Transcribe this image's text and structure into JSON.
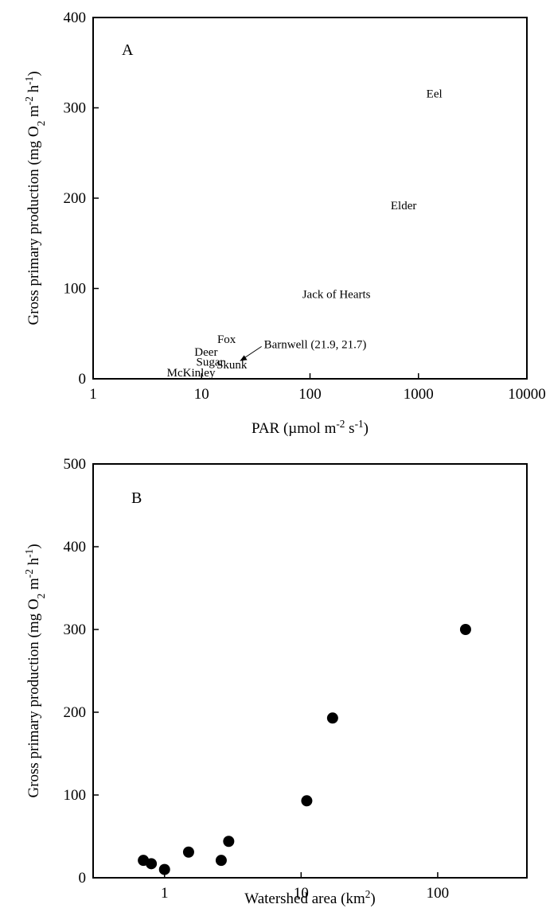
{
  "chart_data": [
    {
      "type": "scatter",
      "panel_label": "A",
      "xlabel": "PAR (µmol m⁻² s⁻¹)",
      "ylabel": "Gross primary production (mg O₂ m⁻² h⁻¹)",
      "x_scale": "log",
      "xlim": [
        1,
        10000
      ],
      "ylim": [
        0,
        400
      ],
      "x_ticks": [
        "1",
        "10",
        "100",
        "1000",
        "10000"
      ],
      "y_ticks": [
        "0",
        "100",
        "200",
        "300",
        "400"
      ],
      "grid": false,
      "marker": "text-label",
      "points": [
        {
          "label": "Eel",
          "x": 1400,
          "y": 316
        },
        {
          "label": "Elder",
          "x": 730,
          "y": 192
        },
        {
          "label": "Jack of Hearts",
          "x": 175,
          "y": 94
        },
        {
          "label": "Fox",
          "x": 17,
          "y": 44
        },
        {
          "label": "Deer",
          "x": 11,
          "y": 30
        },
        {
          "label": "Sugar",
          "x": 12,
          "y": 19
        },
        {
          "label": "Skunk",
          "x": 19,
          "y": 16
        },
        {
          "label": "McKinley",
          "x": 8,
          "y": 7
        },
        {
          "label": "Barnwell (21.9, 21.7)",
          "x": 21.9,
          "y": 21.7
        }
      ]
    },
    {
      "type": "scatter",
      "panel_label": "B",
      "xlabel": "Watershed area (km²)",
      "ylabel": "Gross primary production (mg O₂ m⁻² h⁻¹)",
      "x_scale": "log",
      "xlim": [
        0.3,
        450
      ],
      "ylim": [
        0,
        500
      ],
      "x_ticks": [
        "1",
        "10",
        "100"
      ],
      "y_ticks": [
        "0",
        "100",
        "200",
        "300",
        "400",
        "500"
      ],
      "grid": false,
      "marker": "filled-circle",
      "x": [
        0.7,
        0.8,
        1.0,
        1.5,
        2.6,
        2.95,
        11,
        17,
        160
      ],
      "y": [
        21,
        17,
        10,
        31,
        21,
        44,
        93,
        193,
        300
      ]
    }
  ]
}
